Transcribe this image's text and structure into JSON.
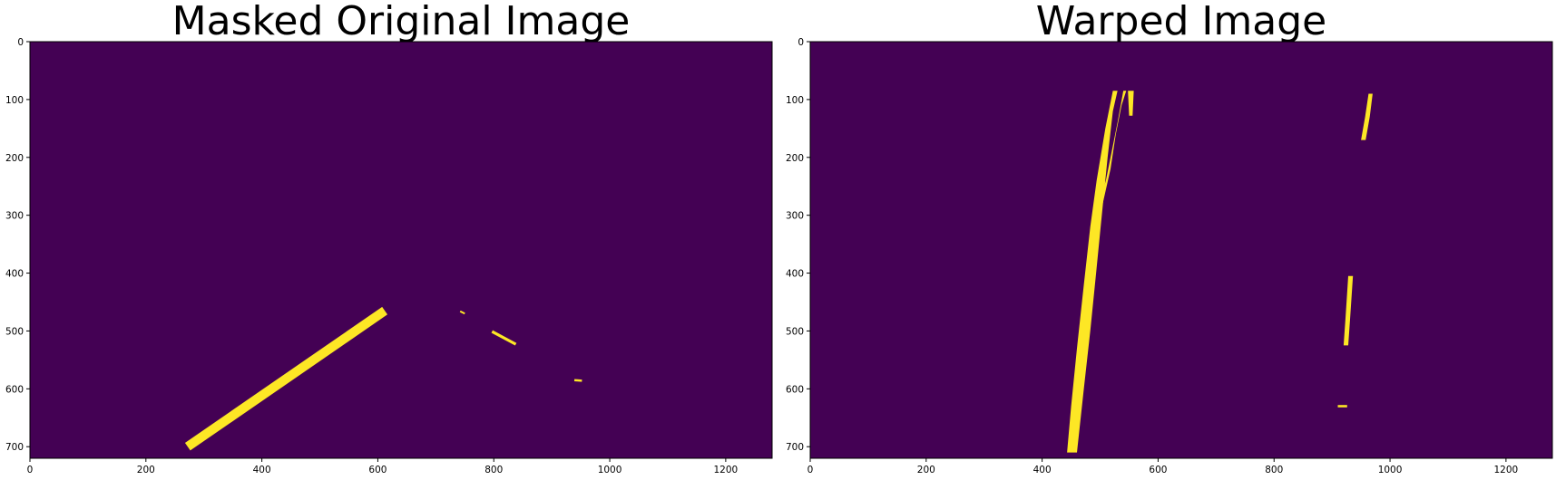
{
  "chart_data": [
    {
      "type": "image",
      "title": "Masked Original Image",
      "image_size": [
        1280,
        720
      ],
      "xlim": [
        0,
        1280
      ],
      "ylim": [
        720,
        0
      ],
      "xticks": [
        0,
        200,
        400,
        600,
        800,
        1000,
        1200
      ],
      "yticks": [
        0,
        100,
        200,
        300,
        400,
        500,
        600,
        700
      ],
      "background_color": "#440154",
      "foreground_color": "#fde725",
      "highlights": [
        {
          "shape": "band",
          "points": [
            [
              272,
              700
            ],
            [
              612,
              465
            ]
          ],
          "width": 16
        },
        {
          "shape": "band",
          "points": [
            [
              742,
              466
            ],
            [
              750,
              470
            ]
          ],
          "width": 3
        },
        {
          "shape": "band",
          "points": [
            [
              797,
              501
            ],
            [
              838,
              523
            ]
          ],
          "width": 5
        },
        {
          "shape": "band",
          "points": [
            [
              939,
              585
            ],
            [
              952,
              586
            ]
          ],
          "width": 4
        }
      ]
    },
    {
      "type": "image",
      "title": "Warped Image",
      "image_size": [
        1280,
        720
      ],
      "xlim": [
        0,
        1280
      ],
      "ylim": [
        720,
        0
      ],
      "xticks": [
        0,
        200,
        400,
        600,
        800,
        1000,
        1200
      ],
      "yticks": [
        0,
        100,
        200,
        300,
        400,
        500,
        600,
        700
      ],
      "background_color": "#440154",
      "foreground_color": "#fde725",
      "highlights": [
        {
          "shape": "polygon",
          "points": [
            [
              443,
              710
            ],
            [
              460,
              710
            ],
            [
              472,
              600
            ],
            [
              483,
              500
            ],
            [
              493,
              400
            ],
            [
              503,
              300
            ],
            [
              513,
              200
            ],
            [
              522,
              120
            ],
            [
              530,
              85
            ],
            [
              522,
              85
            ],
            [
              509,
              150
            ],
            [
              494,
              240
            ],
            [
              483,
              320
            ],
            [
              472,
              420
            ],
            [
              460,
              530
            ],
            [
              450,
              630
            ]
          ]
        },
        {
          "shape": "polygon",
          "points": [
            [
              492,
              300
            ],
            [
              500,
              300
            ],
            [
              518,
              220
            ],
            [
              527,
              160
            ],
            [
              537,
              110
            ],
            [
              545,
              85
            ],
            [
              540,
              85
            ],
            [
              530,
              140
            ],
            [
              520,
              190
            ],
            [
              510,
              240
            ],
            [
              498,
              280
            ]
          ]
        },
        {
          "shape": "polygon",
          "points": [
            [
              548,
              85
            ],
            [
              558,
              85
            ],
            [
              556,
              128
            ],
            [
              550,
              128
            ]
          ]
        },
        {
          "shape": "polygon",
          "points": [
            [
              950,
              170
            ],
            [
              958,
              170
            ],
            [
              965,
              130
            ],
            [
              970,
              90
            ],
            [
              963,
              90
            ],
            [
              957,
              130
            ]
          ]
        },
        {
          "shape": "polygon",
          "points": [
            [
              920,
              525
            ],
            [
              928,
              525
            ],
            [
              931,
              480
            ],
            [
              936,
              405
            ],
            [
              928,
              405
            ],
            [
              923,
              480
            ]
          ]
        },
        {
          "shape": "polygon",
          "points": [
            [
              910,
              632
            ],
            [
              926,
              632
            ],
            [
              926,
              628
            ],
            [
              910,
              628
            ]
          ]
        }
      ]
    }
  ]
}
